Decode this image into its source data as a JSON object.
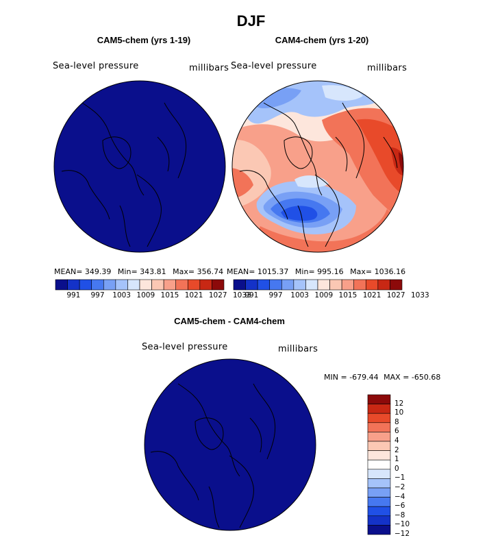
{
  "main_title": "DJF",
  "panels": {
    "left": {
      "title": "CAM5-chem (yrs 1-19)",
      "variable": "Sea-level pressure",
      "units": "millibars",
      "mean_label": "MEAN=",
      "mean": "349.39",
      "min_label": "Min=",
      "min": "343.81",
      "max_label": "Max=",
      "max": "356.74"
    },
    "right": {
      "title": "CAM4-chem (yrs 1-20)",
      "variable": "Sea-level pressure",
      "units": "millibars",
      "mean_label": "MEAN=",
      "mean": "1015.37",
      "min_label": "Min=",
      "min": "995.16",
      "max_label": "Max=",
      "max": "1036.16"
    },
    "diff": {
      "title": "CAM5-chem - CAM4-chem",
      "variable": "Sea-level pressure",
      "units": "millibars",
      "min_label": "MIN =",
      "min": "-679.44",
      "max_label": "MAX =",
      "max": "-650.68"
    }
  },
  "chart_data": [
    {
      "type": "heatmap",
      "title": "CAM5-chem (yrs 1-19)",
      "projection": "north polar stereographic",
      "variable": "Sea-level pressure",
      "units": "millibars",
      "mean": 349.39,
      "min": 343.81,
      "max": 356.74,
      "colorbar_ticks": [
        "991",
        "997",
        "1003",
        "1009",
        "1015",
        "1021",
        "1027",
        "1033"
      ],
      "colorbar_colors": [
        "#0a0f8c",
        "#1432c8",
        "#2050e6",
        "#4678f0",
        "#78a0f5",
        "#a5c3fa",
        "#d7e6fc",
        "#fde6dc",
        "#fbc8b4",
        "#f8a08a",
        "#f27358",
        "#e84a2a",
        "#c82814",
        "#8c0a0a"
      ],
      "field_color": "#0a0f8c"
    },
    {
      "type": "heatmap",
      "title": "CAM4-chem (yrs 1-20)",
      "projection": "north polar stereographic",
      "variable": "Sea-level pressure",
      "units": "millibars",
      "mean": 1015.37,
      "min": 995.16,
      "max": 1036.16,
      "colorbar_ticks": [
        "991",
        "997",
        "1003",
        "1009",
        "1015",
        "1021",
        "1027",
        "1033"
      ],
      "colorbar_colors": [
        "#0a0f8c",
        "#1432c8",
        "#2050e6",
        "#4678f0",
        "#78a0f5",
        "#a5c3fa",
        "#d7e6fc",
        "#fde6dc",
        "#fbc8b4",
        "#f8a08a",
        "#f27358",
        "#e84a2a",
        "#c82814",
        "#8c0a0a"
      ]
    },
    {
      "type": "heatmap",
      "title": "CAM5-chem - CAM4-chem",
      "projection": "north polar stereographic",
      "variable": "Sea-level pressure",
      "units": "millibars",
      "min": -679.44,
      "max": -650.68,
      "colorbar_ticks": [
        "12",
        "10",
        "8",
        "6",
        "4",
        "2",
        "1",
        "0",
        "-1",
        "-2",
        "-4",
        "-6",
        "-8",
        "-10",
        "-12"
      ],
      "colorbar_colors": [
        "#8c0a0a",
        "#c82814",
        "#e84a2a",
        "#f27358",
        "#f8a08a",
        "#fbc8b4",
        "#fde6dc",
        "#ffffff",
        "#d7e6fc",
        "#a5c3fa",
        "#78a0f5",
        "#4678f0",
        "#2050e6",
        "#1432c8",
        "#0a0f8c"
      ],
      "field_color": "#0a0f8c"
    }
  ]
}
